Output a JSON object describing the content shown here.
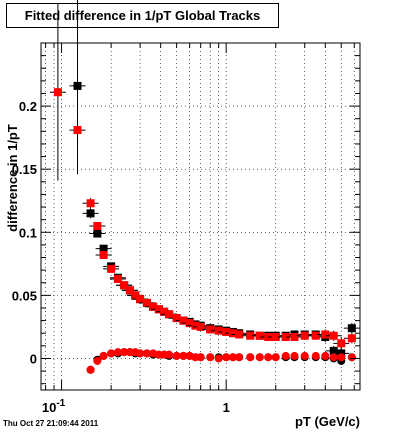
{
  "chart_data": {
    "type": "scatter",
    "title": "Fitted difference in 1/pT  Global Tracks",
    "xlabel": "pT (GeV/c)",
    "ylabel": "difference in 1/pT",
    "xscale": "log",
    "xlim": [
      0.075,
      6.5
    ],
    "ylim": [
      -0.025,
      0.25
    ],
    "grid": true,
    "x_tick_labels": [
      {
        "value": 0.1,
        "base": "10",
        "exp": "-1"
      },
      {
        "value": 1,
        "base": "1",
        "exp": ""
      }
    ],
    "y_ticks": [
      {
        "value": 0,
        "label": "0"
      },
      {
        "value": 0.05,
        "label": "0.05"
      },
      {
        "value": 0.1,
        "label": "0.1"
      },
      {
        "value": 0.15,
        "label": "0.15"
      },
      {
        "value": 0.2,
        "label": "0.2"
      }
    ],
    "series": [
      {
        "color": "#000000",
        "marker": "square",
        "x": [
          0.125,
          0.15,
          0.165,
          0.18,
          0.2,
          0.22,
          0.24,
          0.26,
          0.28,
          0.3,
          0.33,
          0.36,
          0.39,
          0.42,
          0.45,
          0.5,
          0.55,
          0.6,
          0.65,
          0.7,
          0.8,
          0.9,
          1.0,
          1.1,
          1.2,
          1.4,
          1.6,
          1.8,
          2.0,
          2.3,
          2.6,
          3.0,
          3.5,
          4.0,
          4.5,
          5.0,
          5.8
        ],
        "y": [
          0.216,
          0.115,
          0.099,
          0.087,
          0.073,
          0.064,
          0.058,
          0.054,
          0.05,
          0.047,
          0.044,
          0.041,
          0.039,
          0.037,
          0.035,
          0.032,
          0.03,
          0.029,
          0.027,
          0.026,
          0.024,
          0.023,
          0.022,
          0.021,
          0.02,
          0.019,
          0.018,
          0.018,
          0.018,
          0.018,
          0.019,
          0.019,
          0.019,
          0.017,
          0.006,
          0.004,
          0.024
        ],
        "err": [
          0.07,
          0.004,
          0.003,
          0.002,
          0.002,
          0.002,
          0.001,
          0.001,
          0.001,
          0.001,
          0.001,
          0.001,
          0.001,
          0.001,
          0.001,
          0.001,
          0.001,
          0.001,
          0.001,
          0.001,
          0.001,
          0.001,
          0.001,
          0.001,
          0.001,
          0.001,
          0.001,
          0.001,
          0.002,
          0.002,
          0.002,
          0.002,
          0.003,
          0.004,
          0.004,
          0.005,
          0.004
        ]
      },
      {
        "color": "#ff0000",
        "marker": "square",
        "x": [
          0.095,
          0.125,
          0.15,
          0.165,
          0.18,
          0.2,
          0.22,
          0.24,
          0.26,
          0.28,
          0.3,
          0.33,
          0.36,
          0.39,
          0.42,
          0.45,
          0.5,
          0.55,
          0.6,
          0.65,
          0.7,
          0.8,
          0.9,
          1.0,
          1.1,
          1.2,
          1.4,
          1.6,
          1.8,
          2.0,
          2.3,
          2.6,
          3.0,
          3.5,
          4.0,
          4.5,
          5.0,
          5.8
        ],
        "y": [
          0.211,
          0.181,
          0.123,
          0.105,
          0.082,
          0.071,
          0.063,
          0.058,
          0.054,
          0.05,
          0.047,
          0.044,
          0.041,
          0.039,
          0.037,
          0.035,
          0.032,
          0.03,
          0.028,
          0.026,
          0.025,
          0.023,
          0.022,
          0.021,
          0.02,
          0.019,
          0.018,
          0.018,
          0.017,
          0.017,
          0.017,
          0.017,
          0.018,
          0.018,
          0.019,
          0.018,
          0.012,
          0.016
        ],
        "err": [
          0.07,
          0.008,
          0.004,
          0.003,
          0.002,
          0.002,
          0.002,
          0.001,
          0.001,
          0.001,
          0.001,
          0.001,
          0.001,
          0.001,
          0.001,
          0.001,
          0.001,
          0.001,
          0.001,
          0.001,
          0.001,
          0.001,
          0.001,
          0.001,
          0.001,
          0.001,
          0.001,
          0.001,
          0.001,
          0.002,
          0.002,
          0.002,
          0.002,
          0.003,
          0.004,
          0.004,
          0.005,
          0.004
        ]
      },
      {
        "color": "#000000",
        "marker": "circle",
        "x": [
          0.15,
          0.165,
          0.18,
          0.2,
          0.22,
          0.24,
          0.26,
          0.28,
          0.3,
          0.33,
          0.36,
          0.39,
          0.42,
          0.45,
          0.5,
          0.55,
          0.6,
          0.65,
          0.7,
          0.8,
          0.9,
          1.0,
          1.1,
          1.2,
          1.4,
          1.6,
          1.8,
          2.0,
          2.3,
          2.6,
          3.0,
          3.5,
          4.0,
          4.5,
          5.0,
          5.8
        ],
        "y": [
          -0.009,
          -0.001,
          0.002,
          0.004,
          0.004,
          0.005,
          0.005,
          0.004,
          0.004,
          0.004,
          0.003,
          0.003,
          0.003,
          0.002,
          0.002,
          0.002,
          0.002,
          0.001,
          0.001,
          0.001,
          0.001,
          0.001,
          0.001,
          0.001,
          0.001,
          0.001,
          0.001,
          0.001,
          0.001,
          0.001,
          0.001,
          0.001,
          0.001,
          0.0,
          -0.002,
          0.001
        ],
        "err": []
      },
      {
        "color": "#ff0000",
        "marker": "circle",
        "x": [
          0.15,
          0.165,
          0.18,
          0.2,
          0.22,
          0.24,
          0.26,
          0.28,
          0.3,
          0.33,
          0.36,
          0.39,
          0.42,
          0.45,
          0.5,
          0.55,
          0.6,
          0.65,
          0.7,
          0.8,
          0.9,
          1.0,
          1.1,
          1.2,
          1.4,
          1.6,
          1.8,
          2.0,
          2.3,
          2.6,
          3.0,
          3.5,
          4.0,
          4.5,
          5.0,
          5.8
        ],
        "y": [
          -0.009,
          -0.002,
          0.002,
          0.004,
          0.005,
          0.005,
          0.005,
          0.005,
          0.004,
          0.004,
          0.004,
          0.003,
          0.003,
          0.003,
          0.002,
          0.002,
          0.002,
          0.001,
          0.001,
          0.001,
          0.0,
          0.001,
          0.001,
          0.001,
          0.001,
          0.001,
          0.001,
          0.001,
          0.002,
          0.002,
          0.002,
          0.002,
          0.002,
          0.001,
          0.001,
          0.001
        ],
        "err": []
      }
    ]
  },
  "footer": {
    "timestamp": "Thu Oct 27 21:09:44 2011"
  }
}
